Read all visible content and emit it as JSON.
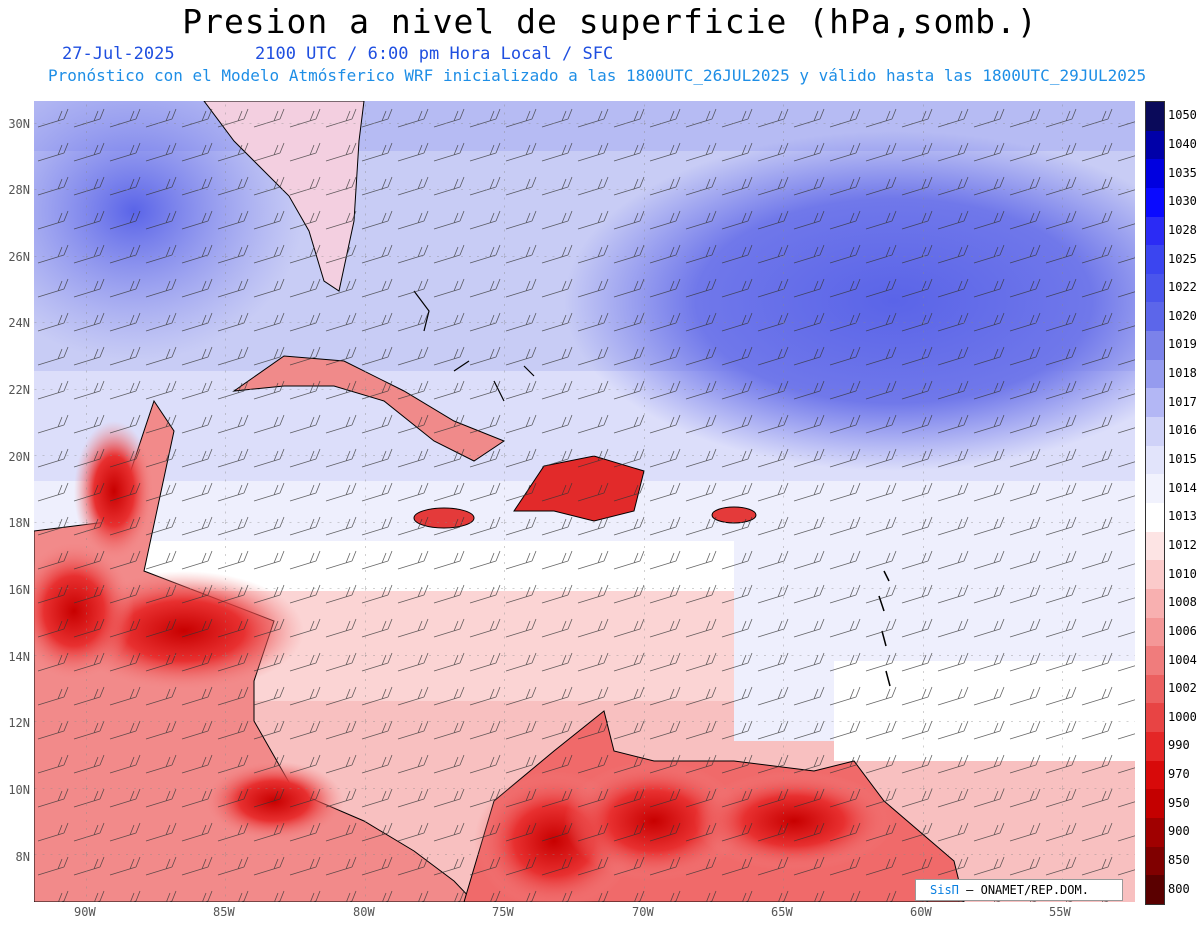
{
  "title": "Presion a nivel de superficie (hPa,somb.)",
  "date": "27-Jul-2025",
  "time_label": "2100 UTC / 6:00 pm Hora Local / SFC",
  "forecast_line": "Pronóstico con el Modelo Atmósferico WRF inicializado a las 1800UTC_26JUL2025 y válido hasta las  1800UTC_29JUL2025",
  "lat_labels": [
    "30N",
    "28N",
    "26N",
    "24N",
    "22N",
    "20N",
    "18N",
    "16N",
    "14N",
    "12N",
    "10N",
    "8N"
  ],
  "lon_labels": [
    "90W",
    "85W",
    "80W",
    "75W",
    "70W",
    "65W",
    "60W",
    "55W"
  ],
  "colorbar": {
    "levels": [
      "1050",
      "1040",
      "1035",
      "1030",
      "1028",
      "1025",
      "1022",
      "1020",
      "1019",
      "1018",
      "1017",
      "1016",
      "1015",
      "1014",
      "1013",
      "1012",
      "1010",
      "1008",
      "1006",
      "1004",
      "1002",
      "1000",
      "990",
      "970",
      "950",
      "900",
      "850",
      "800"
    ],
    "colors": [
      "#0a0a5a",
      "#0000a8",
      "#0000e0",
      "#0a0aff",
      "#2b2bf5",
      "#3b45f0",
      "#4a55ec",
      "#5c66ea",
      "#7b82ea",
      "#959bef",
      "#b3b7f5",
      "#cfd2f8",
      "#e2e4fb",
      "#f1f2fd",
      "#ffffff",
      "#fde4e4",
      "#fbcaca",
      "#f8b0b0",
      "#f49797",
      "#f07c7c",
      "#ec6060",
      "#e84444",
      "#e42626",
      "#d80a0a",
      "#c40000",
      "#a00000",
      "#800000",
      "#5a0000"
    ]
  },
  "credit": {
    "brand": "SisΠ",
    "text": "– ONAMET/REP.DOM."
  }
}
